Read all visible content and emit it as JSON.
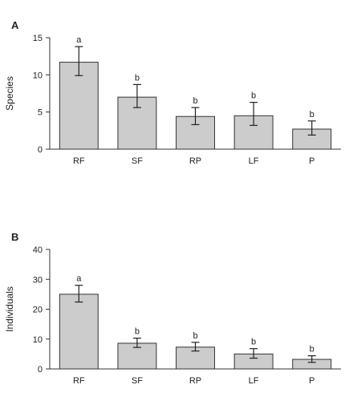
{
  "chart_data": [
    {
      "type": "bar",
      "panel": "A",
      "categories": [
        "RF",
        "SF",
        "RP",
        "LF",
        "P"
      ],
      "values": [
        11.7,
        7.0,
        4.4,
        4.5,
        2.7
      ],
      "error_low": [
        9.9,
        5.6,
        3.3,
        3.2,
        1.9
      ],
      "error_high": [
        13.8,
        8.7,
        5.6,
        6.3,
        3.8
      ],
      "significance": [
        "a",
        "b",
        "b",
        "b",
        "b"
      ],
      "ylabel": "Species",
      "xlabel": "",
      "ylim": [
        0,
        15
      ],
      "yticks": [
        0,
        5,
        10,
        15
      ],
      "bar_color": "#cccccc",
      "grid": false
    },
    {
      "type": "bar",
      "panel": "B",
      "categories": [
        "RF",
        "SF",
        "RP",
        "LF",
        "P"
      ],
      "values": [
        25.0,
        8.6,
        7.3,
        5.0,
        3.2
      ],
      "error_low": [
        22.4,
        7.2,
        6.0,
        3.6,
        2.2
      ],
      "error_high": [
        28.0,
        10.3,
        8.9,
        6.8,
        4.4
      ],
      "significance": [
        "a",
        "b",
        "b",
        "b",
        "b"
      ],
      "ylabel": "Individuals",
      "xlabel": "",
      "ylim": [
        0,
        40
      ],
      "yticks": [
        0,
        10,
        20,
        30,
        40
      ],
      "bar_color": "#cccccc",
      "grid": false
    }
  ]
}
